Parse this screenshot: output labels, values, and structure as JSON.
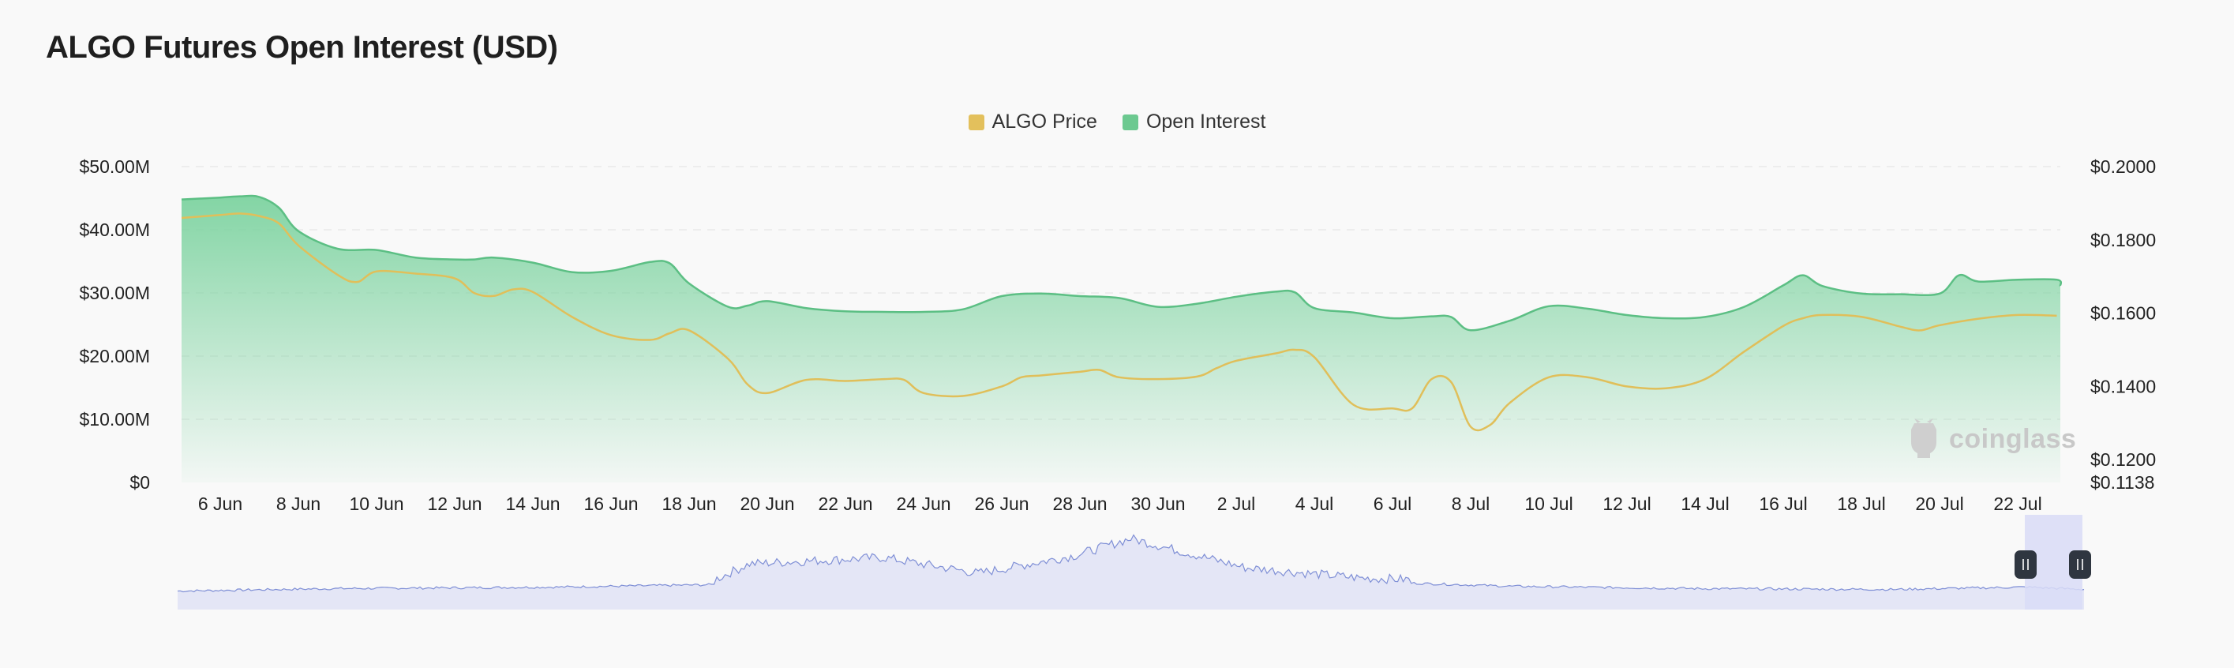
{
  "title": "ALGO Futures Open Interest (USD)",
  "legend": [
    {
      "label": "ALGO Price",
      "color": "#e3c05c"
    },
    {
      "label": "Open Interest",
      "color": "#6cc990"
    }
  ],
  "watermark": "coinglass",
  "colors": {
    "oi_line": "#5cbf84",
    "oi_fill_top": "#7dd3a0",
    "price_line": "#e0bf5a",
    "navigator_fill": "#e4e6f6",
    "navigator_line": "#7f8fd6",
    "navigator_window": "#d9dcf7",
    "handle": "#2f3640"
  },
  "chart_data": {
    "type": "area",
    "title": "ALGO Futures Open Interest (USD)",
    "x_tick_labels": [
      "6 Jun",
      "8 Jun",
      "10 Jun",
      "12 Jun",
      "14 Jun",
      "16 Jun",
      "18 Jun",
      "20 Jun",
      "22 Jun",
      "24 Jun",
      "26 Jun",
      "28 Jun",
      "30 Jun",
      "2 Jul",
      "4 Jul",
      "6 Jul",
      "8 Jul",
      "10 Jul",
      "12 Jul",
      "14 Jul",
      "16 Jul",
      "18 Jul",
      "20 Jul",
      "22 Jul"
    ],
    "x_range_days": [
      -1,
      48
    ],
    "y_left": {
      "ticks": [
        "$0",
        "$10.00M",
        "$20.00M",
        "$30.00M",
        "$40.00M",
        "$50.00M"
      ],
      "range": [
        0,
        50
      ]
    },
    "y_right": {
      "ticks": [
        "$0.1138",
        "$0.1200",
        "$0.1400",
        "$0.1600",
        "$0.1800",
        "$0.2000"
      ],
      "range": [
        0.1138,
        0.2
      ]
    },
    "legend_position": "top-center",
    "grid": true,
    "series": [
      {
        "name": "Open Interest",
        "axis": "left",
        "unit": "USD millions",
        "x": [
          "5 Jun",
          "6 Jun",
          "6 Jun",
          "7 Jun",
          "7 Jun",
          "8 Jun",
          "9 Jun",
          "10 Jun",
          "11 Jun",
          "12 Jun",
          "12 Jun",
          "13 Jun",
          "14 Jun",
          "15 Jun",
          "16 Jun",
          "17 Jun",
          "17 Jun",
          "18 Jun",
          "19 Jun",
          "19 Jun",
          "20 Jun",
          "21 Jun",
          "22 Jun",
          "23 Jun",
          "24 Jun",
          "25 Jun",
          "26 Jun",
          "27 Jun",
          "28 Jun",
          "29 Jun",
          "30 Jun",
          "1 Jul",
          "2 Jul",
          "3 Jul",
          "3 Jul",
          "4 Jul",
          "5 Jul",
          "6 Jul",
          "7 Jul",
          "7 Jul",
          "8 Jul",
          "9 Jul",
          "10 Jul",
          "11 Jul",
          "12 Jul",
          "13 Jul",
          "14 Jul",
          "15 Jul",
          "16 Jul",
          "16 Jul",
          "17 Jul",
          "18 Jul",
          "19 Jul",
          "20 Jul",
          "20 Jul",
          "21 Jul",
          "22 Jul",
          "23 Jul",
          "23 Jul"
        ],
        "values": [
          44.8,
          45.1,
          45.3,
          45.2,
          43.5,
          39.8,
          37.0,
          36.8,
          35.6,
          35.3,
          35.3,
          35.6,
          34.8,
          33.3,
          33.5,
          34.9,
          34.7,
          31.5,
          27.8,
          28.0,
          28.7,
          27.6,
          27.1,
          27.0,
          27.0,
          27.4,
          29.5,
          29.9,
          29.5,
          29.2,
          27.8,
          28.3,
          29.4,
          30.2,
          30.1,
          27.6,
          26.9,
          26.0,
          26.3,
          26.2,
          24.1,
          25.6,
          27.9,
          27.5,
          26.5,
          26.0,
          26.2,
          27.8,
          31.2,
          32.8,
          31.1,
          29.9,
          29.8,
          29.9,
          32.8,
          31.8,
          32.1,
          32.1,
          31.1
        ]
      },
      {
        "name": "ALGO Price",
        "axis": "right",
        "unit": "USD",
        "x": [
          "5 Jun",
          "6 Jun",
          "6 Jun",
          "7 Jun",
          "7 Jun",
          "8 Jun",
          "9 Jun",
          "9 Jun",
          "10 Jun",
          "11 Jun",
          "12 Jun",
          "12 Jun",
          "13 Jun",
          "13 Jun",
          "14 Jun",
          "15 Jun",
          "16 Jun",
          "17 Jun",
          "17 Jun",
          "18 Jun",
          "19 Jun",
          "19 Jun",
          "20 Jun",
          "21 Jun",
          "22 Jun",
          "23 Jun",
          "23 Jun",
          "24 Jun",
          "25 Jun",
          "26 Jun",
          "26 Jun",
          "27 Jun",
          "28 Jun",
          "28 Jun",
          "29 Jun",
          "30 Jun",
          "1 Jul",
          "1 Jul",
          "2 Jul",
          "3 Jul",
          "3 Jul",
          "4 Jul",
          "5 Jul",
          "6 Jul",
          "6 Jul",
          "7 Jul",
          "7 Jul",
          "8 Jul",
          "8 Jul",
          "9 Jul",
          "10 Jul",
          "11 Jul",
          "12 Jul",
          "13 Jul",
          "14 Jul",
          "15 Jul",
          "16 Jul",
          "16 Jul",
          "17 Jul",
          "18 Jul",
          "19 Jul",
          "19 Jul",
          "20 Jul",
          "21 Jul",
          "22 Jul",
          "23 Jul"
        ],
        "values": [
          0.186,
          0.1868,
          0.1872,
          0.1865,
          0.1845,
          0.1785,
          0.1705,
          0.1685,
          0.1714,
          0.1708,
          0.1695,
          0.1655,
          0.1647,
          0.1665,
          0.1658,
          0.159,
          0.154,
          0.1527,
          0.1545,
          0.1553,
          0.1475,
          0.1405,
          0.1382,
          0.1418,
          0.1415,
          0.142,
          0.1418,
          0.1382,
          0.1374,
          0.14,
          0.1425,
          0.143,
          0.144,
          0.1445,
          0.1425,
          0.142,
          0.1427,
          0.145,
          0.147,
          0.149,
          0.15,
          0.148,
          0.135,
          0.134,
          0.134,
          0.142,
          0.1412,
          0.129,
          0.1295,
          0.1355,
          0.1425,
          0.1425,
          0.14,
          0.1395,
          0.142,
          0.1495,
          0.1565,
          0.1586,
          0.1595,
          0.159,
          0.1563,
          0.1553,
          0.1567,
          0.1585,
          0.1595,
          0.1593
        ]
      }
    ]
  }
}
